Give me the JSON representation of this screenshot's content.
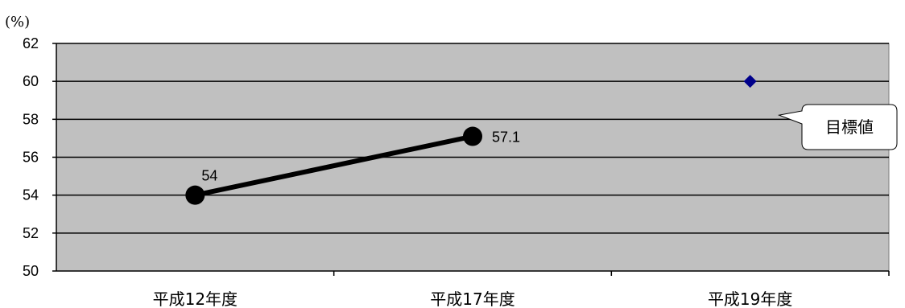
{
  "chart_data": {
    "type": "line",
    "unit_label": "(%)",
    "categories": [
      "平成12年度",
      "平成17年度",
      "平成19年度"
    ],
    "ylim": [
      50,
      62
    ],
    "yticks": [
      50,
      52,
      54,
      56,
      58,
      60,
      62
    ],
    "grid": true,
    "series": [
      {
        "values": [
          54,
          57.1,
          null
        ],
        "labels": [
          "54",
          "57.1",
          null
        ],
        "color": "#000000",
        "marker": "circle"
      }
    ],
    "target": {
      "category": "平成19年度",
      "value": 60,
      "label": "目標値",
      "color": "#00008B",
      "marker": "diamond"
    },
    "colors": {
      "plot_bg": "#C0C0C0",
      "line": "#000000"
    }
  }
}
